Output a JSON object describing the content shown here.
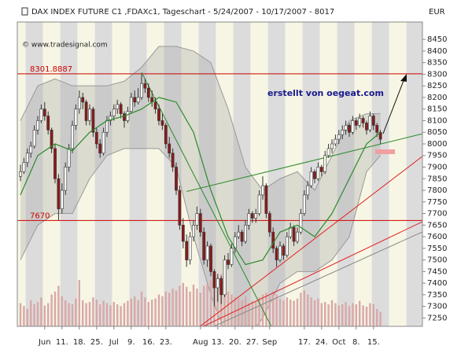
{
  "chart_data": {
    "type": "candlestick",
    "title": "DAX INDEX FUTURE C1 ,FDAXc1, Tageschart - 5/24/2007 - 10/17/2007 - 8017",
    "source": "© www.tradesignal.com",
    "currency": "EUR",
    "annotation": "erstellt von oegeat.com",
    "categories": [
      null,
      null,
      null,
      null,
      null,
      null,
      null,
      "Jun",
      null,
      null,
      null,
      null,
      "11.",
      null,
      null,
      null,
      null,
      "18.",
      null,
      null,
      null,
      null,
      "25.",
      null,
      null,
      null,
      null,
      "Jul",
      null,
      null,
      null,
      null,
      "9.",
      null,
      null,
      null,
      null,
      "16.",
      null,
      null,
      null,
      null,
      "23.",
      null,
      null,
      null,
      null,
      null,
      null,
      null,
      null,
      null,
      "Aug",
      null,
      null,
      null,
      null,
      "13.",
      null,
      null,
      null,
      null,
      "20.",
      null,
      null,
      null,
      null,
      "27.",
      null,
      null,
      null,
      null,
      "Sep",
      null,
      null,
      null,
      null,
      null,
      null,
      null,
      null,
      null,
      "17.",
      null,
      null,
      null,
      null,
      "24.",
      null,
      null,
      null,
      null,
      "Oct",
      null,
      null,
      null,
      null,
      "8.",
      null,
      null,
      null,
      null,
      "15.",
      null,
      null
    ],
    "ohlc": [
      [
        7860,
        7910,
        7840,
        7880
      ],
      [
        7880,
        7940,
        7870,
        7920
      ],
      [
        7920,
        7980,
        7900,
        7960
      ],
      [
        7960,
        8010,
        7940,
        7990
      ],
      [
        7990,
        8080,
        7980,
        8060
      ],
      [
        8060,
        8120,
        8040,
        8100
      ],
      [
        8100,
        8170,
        8090,
        8150
      ],
      [
        8150,
        8180,
        8100,
        8120
      ],
      [
        8120,
        8140,
        8040,
        8060
      ],
      [
        8060,
        8070,
        7960,
        7980
      ],
      [
        7980,
        8000,
        7830,
        7850
      ],
      [
        7850,
        7870,
        7670,
        7720
      ],
      [
        7720,
        7830,
        7700,
        7800
      ],
      [
        7800,
        7920,
        7780,
        7900
      ],
      [
        7900,
        8000,
        7880,
        7980
      ],
      [
        7980,
        8100,
        7960,
        8080
      ],
      [
        8080,
        8170,
        8060,
        8150
      ],
      [
        8150,
        8230,
        8130,
        8200
      ],
      [
        8200,
        8220,
        8150,
        8180
      ],
      [
        8180,
        8190,
        8080,
        8100
      ],
      [
        8100,
        8170,
        8080,
        8150
      ],
      [
        8150,
        8160,
        8030,
        8050
      ],
      [
        8050,
        8070,
        7980,
        8000
      ],
      [
        8000,
        8020,
        7940,
        7960
      ],
      [
        7960,
        8070,
        7950,
        8050
      ],
      [
        8050,
        8120,
        8030,
        8100
      ],
      [
        8100,
        8140,
        8080,
        8120
      ],
      [
        8120,
        8170,
        8100,
        8150
      ],
      [
        8150,
        8190,
        8130,
        8170
      ],
      [
        8170,
        8180,
        8110,
        8130
      ],
      [
        8130,
        8140,
        8070,
        8100
      ],
      [
        8100,
        8160,
        8090,
        8140
      ],
      [
        8140,
        8220,
        8130,
        8200
      ],
      [
        8200,
        8230,
        8160,
        8180
      ],
      [
        8180,
        8240,
        8170,
        8200
      ],
      [
        8200,
        8300,
        8190,
        8260
      ],
      [
        8260,
        8280,
        8220,
        8240
      ],
      [
        8240,
        8260,
        8180,
        8200
      ],
      [
        8200,
        8230,
        8160,
        8180
      ],
      [
        8180,
        8200,
        8130,
        8150
      ],
      [
        8150,
        8170,
        8080,
        8100
      ],
      [
        8100,
        8130,
        8060,
        8080
      ],
      [
        8080,
        8090,
        7980,
        8000
      ],
      [
        8000,
        8030,
        7940,
        7960
      ],
      [
        7960,
        7980,
        7880,
        7900
      ],
      [
        7900,
        7920,
        7780,
        7800
      ],
      [
        7800,
        7820,
        7630,
        7650
      ],
      [
        7650,
        7680,
        7550,
        7580
      ],
      [
        7580,
        7610,
        7470,
        7500
      ],
      [
        7500,
        7620,
        7480,
        7600
      ],
      [
        7600,
        7670,
        7580,
        7650
      ],
      [
        7650,
        7730,
        7630,
        7700
      ],
      [
        7700,
        7720,
        7600,
        7620
      ],
      [
        7620,
        7640,
        7480,
        7500
      ],
      [
        7500,
        7580,
        7470,
        7560
      ],
      [
        7560,
        7570,
        7430,
        7450
      ],
      [
        7450,
        7460,
        7300,
        7380
      ],
      [
        7380,
        7440,
        7320,
        7420
      ],
      [
        7420,
        7430,
        7310,
        7350
      ],
      [
        7350,
        7520,
        7340,
        7500
      ],
      [
        7500,
        7530,
        7460,
        7480
      ],
      [
        7480,
        7570,
        7470,
        7550
      ],
      [
        7550,
        7620,
        7530,
        7600
      ],
      [
        7600,
        7650,
        7590,
        7620
      ],
      [
        7620,
        7630,
        7560,
        7580
      ],
      [
        7580,
        7670,
        7570,
        7650
      ],
      [
        7650,
        7720,
        7630,
        7700
      ],
      [
        7700,
        7710,
        7660,
        7680
      ],
      [
        7680,
        7720,
        7660,
        7700
      ],
      [
        7700,
        7800,
        7690,
        7780
      ],
      [
        7780,
        7860,
        7760,
        7820
      ],
      [
        7820,
        7830,
        7680,
        7700
      ],
      [
        7700,
        7710,
        7600,
        7620
      ],
      [
        7620,
        7640,
        7530,
        7550
      ],
      [
        7550,
        7560,
        7470,
        7500
      ],
      [
        7500,
        7580,
        7490,
        7560
      ],
      [
        7560,
        7570,
        7500,
        7520
      ],
      [
        7520,
        7620,
        7510,
        7600
      ],
      [
        7600,
        7660,
        7590,
        7640
      ],
      [
        7640,
        7650,
        7560,
        7580
      ],
      [
        7580,
        7640,
        7570,
        7620
      ],
      [
        7620,
        7720,
        7610,
        7700
      ],
      [
        7700,
        7800,
        7690,
        7780
      ],
      [
        7780,
        7840,
        7760,
        7820
      ],
      [
        7820,
        7900,
        7810,
        7880
      ],
      [
        7880,
        7890,
        7830,
        7850
      ],
      [
        7850,
        7920,
        7840,
        7900
      ],
      [
        7900,
        7910,
        7860,
        7880
      ],
      [
        7880,
        7970,
        7870,
        7950
      ],
      [
        7950,
        8000,
        7940,
        7980
      ],
      [
        7980,
        8020,
        7960,
        8000
      ],
      [
        8000,
        8040,
        7990,
        8020
      ],
      [
        8020,
        8060,
        8000,
        8040
      ],
      [
        8040,
        8080,
        8020,
        8060
      ],
      [
        8060,
        8100,
        8040,
        8080
      ],
      [
        8080,
        8090,
        8030,
        8050
      ],
      [
        8050,
        8120,
        8040,
        8100
      ],
      [
        8100,
        8110,
        8060,
        8080
      ],
      [
        8080,
        8130,
        8070,
        8110
      ],
      [
        8110,
        8120,
        8070,
        8090
      ],
      [
        8090,
        8100,
        8040,
        8060
      ],
      [
        8060,
        8140,
        8050,
        8120
      ],
      [
        8120,
        8130,
        8060,
        8080
      ],
      [
        8080,
        8090,
        8030,
        8050
      ],
      [
        8050,
        8060,
        8000,
        8020
      ]
    ],
    "up_color": "#ffffff",
    "down_color": "#8b1a1a",
    "volume": [
      40,
      35,
      30,
      45,
      38,
      42,
      50,
      36,
      40,
      55,
      60,
      70,
      52,
      45,
      40,
      38,
      48,
      80,
      45,
      40,
      42,
      50,
      46,
      38,
      44,
      40,
      36,
      42,
      38,
      35,
      40,
      44,
      48,
      52,
      45,
      60,
      50,
      42,
      46,
      48,
      55,
      52,
      60,
      58,
      65,
      62,
      70,
      75,
      68,
      60,
      72,
      65,
      58,
      70,
      74,
      80,
      95,
      85,
      90,
      78,
      60,
      55,
      50,
      48,
      45,
      52,
      40,
      44,
      42,
      50,
      55,
      58,
      52,
      60,
      55,
      48,
      45,
      50,
      46,
      44,
      48,
      58,
      62,
      55,
      50,
      45,
      48,
      40,
      42,
      38,
      45,
      40,
      36,
      38,
      42,
      35,
      40,
      38,
      44,
      36,
      34,
      40,
      38,
      30,
      25
    ],
    "volume_color": "#d9a8a8",
    "bands": {
      "x": [
        0,
        5,
        10,
        15,
        20,
        25,
        30,
        35,
        40,
        45,
        50,
        55,
        60,
        65,
        70,
        75,
        80,
        85,
        90,
        95,
        100,
        104
      ],
      "ma": [
        7780,
        7950,
        8000,
        7970,
        8050,
        8100,
        8120,
        8150,
        8200,
        8180,
        8050,
        7800,
        7600,
        7480,
        7500,
        7620,
        7650,
        7600,
        7700,
        7850,
        8000,
        8050
      ],
      "upper": [
        8100,
        8250,
        8280,
        8250,
        8250,
        8250,
        8270,
        8330,
        8420,
        8420,
        8400,
        8350,
        8150,
        7900,
        7800,
        7850,
        7880,
        7800,
        7950,
        8100,
        8130,
        8130
      ],
      "lower": [
        7500,
        7650,
        7700,
        7700,
        7850,
        7950,
        7980,
        7980,
        7980,
        7900,
        7600,
        7350,
        7150,
        7150,
        7250,
        7400,
        7450,
        7450,
        7500,
        7600,
        7880,
        7950
      ],
      "ma_color": "#2a8a2a",
      "band_color": "#999999"
    },
    "levels": [
      8301.8887,
      7670
    ],
    "level_color": "#cc0000",
    "trendlines": [
      {
        "color": "#2a8a2a",
        "points": [
          [
            48,
            7795
          ],
          [
            116,
            8043
          ]
        ]
      },
      {
        "color": "#2a8a2a",
        "points": [
          [
            35,
            8308
          ],
          [
            72.5,
            7213
          ]
        ]
      },
      {
        "color": "#e02020",
        "points": [
          [
            52,
            7215
          ],
          [
            116,
            7945
          ]
        ]
      },
      {
        "color": "#e02020",
        "points": [
          [
            53,
            7215
          ],
          [
            116,
            7664
          ]
        ]
      },
      {
        "color": "#888888",
        "points": [
          [
            56,
            7215
          ],
          [
            116,
            7620
          ]
        ]
      }
    ],
    "ylim": [
      7214,
      8525
    ],
    "yticks": [
      7250,
      7300,
      7350,
      7400,
      7450,
      7500,
      7550,
      7600,
      7650,
      7700,
      7750,
      7800,
      7850,
      7900,
      7950,
      8000,
      8050,
      8100,
      8150,
      8200,
      8250,
      8300,
      8350,
      8400,
      8450
    ]
  }
}
